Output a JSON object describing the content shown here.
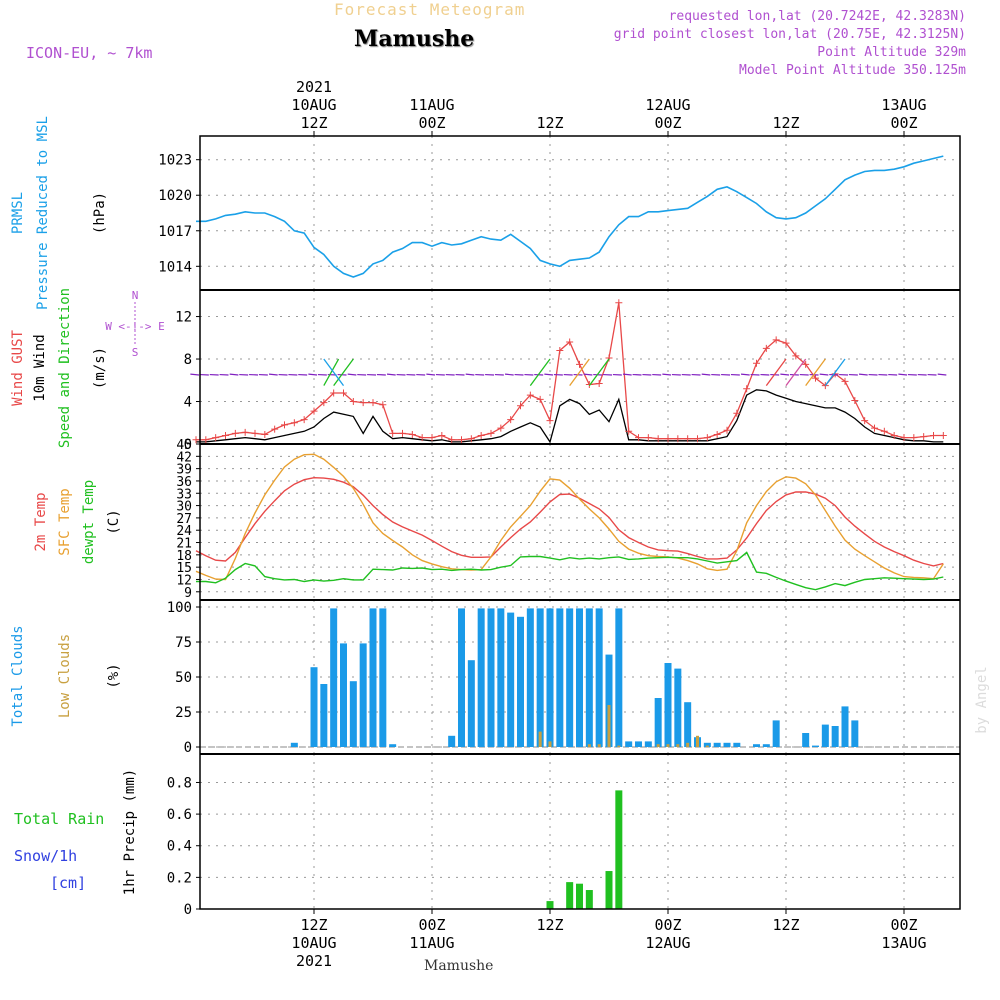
{
  "header": {
    "product": "Forecast Meteogram",
    "location": "Mamushe",
    "model": "ICON-EU, ~ 7km",
    "requested": "requested lon,lat (20.7242E, 42.3283N)",
    "grid_point": "grid point closest lon,lat (20.75E, 42.3125N)",
    "point_alt": "Point Altitude 329m",
    "model_alt": "Model Point Altitude 350.125m",
    "credit": "by Angel",
    "footer_location": "Mamushe"
  },
  "time_axis": {
    "top_labels": [
      {
        "h": 12,
        "lines": [
          "2021",
          "10AUG",
          "12Z"
        ]
      },
      {
        "h": 24,
        "lines": [
          "11AUG",
          "00Z"
        ]
      },
      {
        "h": 36,
        "lines": [
          "12Z"
        ]
      },
      {
        "h": 48,
        "lines": [
          "12AUG",
          "00Z"
        ]
      },
      {
        "h": 60,
        "lines": [
          "12Z"
        ]
      },
      {
        "h": 72,
        "lines": [
          "13AUG",
          "00Z"
        ]
      }
    ],
    "bottom_labels": [
      {
        "h": 12,
        "lines": [
          "12Z",
          "10AUG",
          "2021"
        ]
      },
      {
        "h": 24,
        "lines": [
          "00Z",
          "11AUG"
        ]
      },
      {
        "h": 36,
        "lines": [
          "12Z"
        ]
      },
      {
        "h": 48,
        "lines": [
          "00Z",
          "12AUG"
        ]
      },
      {
        "h": 60,
        "lines": [
          "12Z"
        ]
      },
      {
        "h": 72,
        "lines": [
          "00Z",
          "13AUG"
        ]
      }
    ]
  },
  "panel_labels": {
    "pressure": {
      "a": "PRMSL",
      "b": "Pressure Reduced to MSL",
      "unit": "(hPa)"
    },
    "wind": {
      "gust": "Wind GUST",
      "wind10": "10m Wind",
      "dir": "Speed and Direction",
      "unit": "(m/s)",
      "compass_ns": "N",
      "compass_we": "W <-!-> E",
      "compass_s": "S"
    },
    "temp": {
      "t2m": "2m Temp",
      "sfc": "SFC Temp",
      "dew": "dewpt Temp",
      "unit": "(C)"
    },
    "clouds": {
      "total": "Total Clouds",
      "low": "Low Clouds",
      "unit": "(%)"
    },
    "precip": {
      "rain": "Total  Rain",
      "snow": "Snow/1h",
      "snow_unit": "[cm]",
      "axis": "1hr Precip (mm)"
    }
  },
  "colors": {
    "pressure": "#1aa0e8",
    "gust": "#e84848",
    "wind": "#000000",
    "t2m": "#e84848",
    "sfc": "#e8a030",
    "dew": "#20c020",
    "total_cloud": "#1a9ae8",
    "low_cloud": "#c8a040",
    "rain": "#20c020",
    "snow": "#3040e0",
    "header_purple": "#b050d0",
    "title_gold": "#f0d090",
    "wind_arrow": "#8020c0"
  },
  "chart_data": [
    {
      "type": "line",
      "title": "PRMSL Pressure Reduced to MSL",
      "ylabel": "(hPa)",
      "x_start_hour": 0,
      "x_step_hour": 1,
      "xlim": [
        0,
        76
      ],
      "ylim": [
        1012,
        1025
      ],
      "yticks": [
        1014,
        1017,
        1020,
        1023
      ],
      "series": [
        {
          "name": "PRMSL",
          "values": [
            1017.8,
            1017.8,
            1018.0,
            1018.3,
            1018.4,
            1018.6,
            1018.5,
            1018.5,
            1018.2,
            1017.8,
            1017,
            1016.8,
            1015.6,
            1015.0,
            1014.0,
            1013.4,
            1013.1,
            1013.4,
            1014.2,
            1014.5,
            1015.2,
            1015.5,
            1016.0,
            1016.0,
            1015.7,
            1016.0,
            1015.8,
            1015.9,
            1016.2,
            1016.5,
            1016.3,
            1016.2,
            1016.7,
            1016.1,
            1015.5,
            1014.5,
            1014.2,
            1014.0,
            1014.5,
            1014.6,
            1014.7,
            1015.2,
            1016.5,
            1017.5,
            1018.2,
            1018.2,
            1018.6,
            1018.6,
            1018.7,
            1018.8,
            1018.9,
            1019.4,
            1019.9,
            1020.5,
            1020.7,
            1020.3,
            1019.8,
            1019.3,
            1018.6,
            1018.1,
            1018.0,
            1018.1,
            1018.5,
            1019.1,
            1019.7,
            1020.5,
            1021.3,
            1021.7,
            1022.0,
            1022.1,
            1022.1,
            1022.2,
            1022.4,
            1022.7,
            1022.9,
            1023.1,
            1023.3
          ]
        }
      ]
    },
    {
      "type": "line",
      "title": "Wind GUST / 10m Wind",
      "ylabel": "(m/s)",
      "x_start_hour": 0,
      "x_step_hour": 1,
      "xlim": [
        0,
        76
      ],
      "ylim": [
        0,
        14.5
      ],
      "yticks": [
        0,
        4,
        8,
        12
      ],
      "series": [
        {
          "name": "Wind GUST",
          "values": [
            0.4,
            0.4,
            0.6,
            0.8,
            1.0,
            1.1,
            1.0,
            0.9,
            1.4,
            1.8,
            2.0,
            2.3,
            3.1,
            3.9,
            4.8,
            4.8,
            4.0,
            3.9,
            3.9,
            3.7,
            1.0,
            1.0,
            0.9,
            0.6,
            0.6,
            0.8,
            0.4,
            0.4,
            0.5,
            0.8,
            1.0,
            1.5,
            2.3,
            3.6,
            4.6,
            4.2,
            2.2,
            8.8,
            9.6,
            7.5,
            5.6,
            5.7,
            8.1,
            13.3,
            1.2,
            0.6,
            0.6,
            0.5,
            0.5,
            0.5,
            0.5,
            0.5,
            0.6,
            0.9,
            1.3,
            2.9,
            5.2,
            7.6,
            9.0,
            9.8,
            9.5,
            8.3,
            7.5,
            6.2,
            5.5,
            6.6,
            5.9,
            4.1,
            2.2,
            1.5,
            1.2,
            0.8,
            0.6,
            0.6,
            0.7,
            0.8,
            0.8
          ]
        },
        {
          "name": "10m Wind",
          "values": [
            0.2,
            0.2,
            0.3,
            0.4,
            0.5,
            0.6,
            0.5,
            0.4,
            0.6,
            0.8,
            1.0,
            1.2,
            1.6,
            2.4,
            3.0,
            2.8,
            2.6,
            1.0,
            2.6,
            1.2,
            0.5,
            0.6,
            0.5,
            0.4,
            0.3,
            0.4,
            0.2,
            0.2,
            0.3,
            0.4,
            0.5,
            0.7,
            1.2,
            1.6,
            2.0,
            1.6,
            0.2,
            3.6,
            4.2,
            3.8,
            2.8,
            3.2,
            2.1,
            4.2,
            0.4,
            0.4,
            0.3,
            0.3,
            0.3,
            0.3,
            0.3,
            0.3,
            0.3,
            0.5,
            0.7,
            2.2,
            4.6,
            5.1,
            5.0,
            4.6,
            4.3,
            4.0,
            3.8,
            3.6,
            3.4,
            3.4,
            3.0,
            2.4,
            1.6,
            1.0,
            0.8,
            0.6,
            0.4,
            0.3,
            0.3,
            0.2,
            0.2
          ]
        }
      ],
      "direction_arrows": "wind barbs along 6.5 m/s line, mostly easterly flow with gust vectors near 12Z"
    },
    {
      "type": "line",
      "title": "2m / SFC / dewpt Temp",
      "ylabel": "(C)",
      "x_start_hour": 0,
      "x_step_hour": 1,
      "xlim": [
        0,
        76
      ],
      "ylim": [
        7,
        45
      ],
      "yticks": [
        9,
        12,
        15,
        18,
        21,
        24,
        27,
        30,
        33,
        36,
        39,
        42,
        45
      ],
      "series": [
        {
          "name": "2m Temp",
          "values": [
            19.0,
            17.8,
            16.7,
            16.5,
            18.6,
            22.2,
            25.6,
            28.6,
            31.2,
            33.6,
            35.2,
            36.3,
            36.8,
            36.7,
            36.4,
            35.7,
            34.6,
            32.5,
            30.0,
            27.8,
            26.0,
            24.8,
            23.8,
            22.8,
            21.5,
            20.1,
            18.8,
            17.9,
            17.4,
            17.4,
            17.5,
            19.9,
            22.2,
            24.3,
            26.0,
            28.4,
            30.9,
            32.7,
            32.8,
            31.8,
            30.5,
            29.2,
            27.1,
            24.1,
            22.2,
            21.0,
            19.9,
            19.2,
            19.0,
            18.9,
            18.3,
            17.6,
            17.0,
            17.0,
            17.2,
            19.2,
            22.1,
            25.6,
            28.8,
            31.0,
            32.6,
            33.3,
            33.3,
            32.8,
            31.8,
            30.0,
            27.2,
            25.0,
            23.1,
            21.3,
            19.9,
            18.8,
            17.8,
            16.7,
            15.9,
            15.3,
            15.9
          ]
        },
        {
          "name": "SFC Temp",
          "values": [
            14.0,
            13.0,
            12.1,
            12.0,
            17.1,
            23.2,
            28.2,
            32.6,
            36.2,
            39.4,
            41.3,
            42.4,
            42.5,
            41.3,
            39.3,
            37.1,
            34.2,
            30.3,
            25.8,
            23.2,
            21.5,
            19.9,
            18.0,
            16.6,
            15.8,
            15.1,
            14.6,
            14.4,
            14.3,
            14.4,
            17.5,
            21.5,
            24.8,
            27.4,
            30.0,
            33.5,
            36.5,
            36.2,
            34.2,
            31.6,
            29.2,
            27.0,
            24.3,
            21.3,
            19.4,
            18.4,
            17.8,
            17.6,
            17.5,
            17.2,
            16.6,
            15.8,
            14.6,
            14.2,
            14.5,
            19.0,
            25.8,
            30.0,
            33.4,
            35.8,
            37.0,
            36.7,
            35.3,
            32.6,
            28.8,
            25.0,
            21.6,
            19.4,
            17.8,
            16.3,
            14.8,
            13.6,
            12.7,
            12.5,
            12.4,
            12.2,
            15.8
          ]
        },
        {
          "name": "dewpt Temp",
          "values": [
            11.5,
            11.5,
            11.2,
            12.3,
            14.4,
            15.9,
            15.3,
            12.7,
            12.2,
            11.9,
            12.0,
            11.5,
            11.9,
            11.6,
            11.8,
            12.2,
            11.9,
            11.9,
            14.5,
            14.4,
            14.3,
            14.8,
            14.7,
            14.8,
            14.4,
            14.5,
            14.2,
            14.4,
            14.5,
            14.3,
            14.4,
            15.0,
            15.4,
            17.5,
            17.6,
            17.6,
            17.2,
            16.8,
            17.3,
            17.0,
            17.2,
            17.0,
            17.3,
            17.5,
            16.9,
            17.0,
            17.2,
            17.3,
            17.4,
            17.3,
            17.3,
            17.0,
            16.5,
            16.0,
            16.3,
            16.6,
            18.6,
            13.8,
            13.5,
            12.5,
            11.6,
            10.8,
            10.0,
            9.5,
            10.2,
            11.0,
            10.5,
            11.3,
            12.0,
            12.2,
            12.4,
            12.3,
            12.2,
            12.1,
            12.0,
            12.1,
            12.6
          ]
        }
      ]
    },
    {
      "type": "bar",
      "title": "Total / Low Clouds",
      "ylabel": "(%)",
      "x_start_hour": 0,
      "x_step_hour": 1,
      "xlim": [
        0,
        76
      ],
      "ylim": [
        -5,
        105
      ],
      "yticks": [
        0,
        25,
        50,
        75,
        100
      ],
      "series": [
        {
          "name": "Total Clouds",
          "values": [
            0,
            0,
            0,
            0,
            0,
            0,
            0,
            0,
            0,
            0,
            3,
            0,
            57,
            45,
            99,
            74,
            47,
            74,
            99,
            99,
            2,
            0,
            0,
            0,
            0,
            0,
            8,
            99,
            62,
            99,
            99,
            99,
            96,
            93,
            99,
            99,
            99,
            99,
            99,
            99,
            99,
            99,
            66,
            99,
            4,
            4,
            4,
            35,
            60,
            56,
            32,
            7,
            3,
            3,
            3,
            3,
            0,
            2,
            2,
            19,
            0,
            0,
            10,
            1,
            16,
            15,
            29,
            19,
            0,
            0,
            0,
            0,
            0,
            0,
            0,
            0,
            0
          ]
        },
        {
          "name": "Low Clouds",
          "values": [
            0,
            0,
            0,
            0,
            0,
            0,
            0,
            0,
            0,
            0,
            0,
            0,
            0,
            0,
            0,
            0,
            0,
            0,
            0,
            0,
            0,
            0,
            0,
            0,
            0,
            0,
            0,
            0,
            0,
            0,
            0,
            0,
            0,
            0,
            0,
            11,
            4,
            0,
            0,
            0,
            2,
            2,
            30,
            1,
            0,
            0,
            0,
            2,
            2,
            2,
            3,
            8,
            1,
            0,
            0,
            0,
            0,
            0,
            0,
            0,
            0,
            0,
            0,
            0,
            0,
            0,
            0,
            0,
            0,
            0,
            0,
            0,
            0,
            0,
            0,
            0,
            0
          ]
        }
      ]
    },
    {
      "type": "bar",
      "title": "1hr Precip (mm)",
      "ylabel": "1hr Precip (mm)",
      "x_start_hour": 0,
      "x_step_hour": 1,
      "xlim": [
        0,
        76
      ],
      "ylim": [
        0,
        0.98
      ],
      "yticks": [
        0,
        0.2,
        0.4,
        0.6,
        0.8
      ],
      "series": [
        {
          "name": "Total Rain",
          "values": [
            0,
            0,
            0,
            0,
            0,
            0,
            0,
            0,
            0,
            0,
            0,
            0,
            0,
            0,
            0,
            0,
            0,
            0,
            0,
            0,
            0,
            0,
            0,
            0,
            0,
            0,
            0,
            0,
            0,
            0,
            0,
            0,
            0,
            0,
            0,
            0,
            0.05,
            0,
            0.17,
            0.16,
            0.12,
            0,
            0.24,
            0.75,
            0,
            0,
            0,
            0,
            0,
            0,
            0,
            0,
            0,
            0,
            0,
            0,
            0,
            0,
            0,
            0,
            0,
            0,
            0,
            0,
            0,
            0,
            0,
            0,
            0,
            0,
            0,
            0,
            0,
            0,
            0,
            0,
            0
          ]
        },
        {
          "name": "Snow/1h",
          "values": []
        }
      ]
    }
  ]
}
